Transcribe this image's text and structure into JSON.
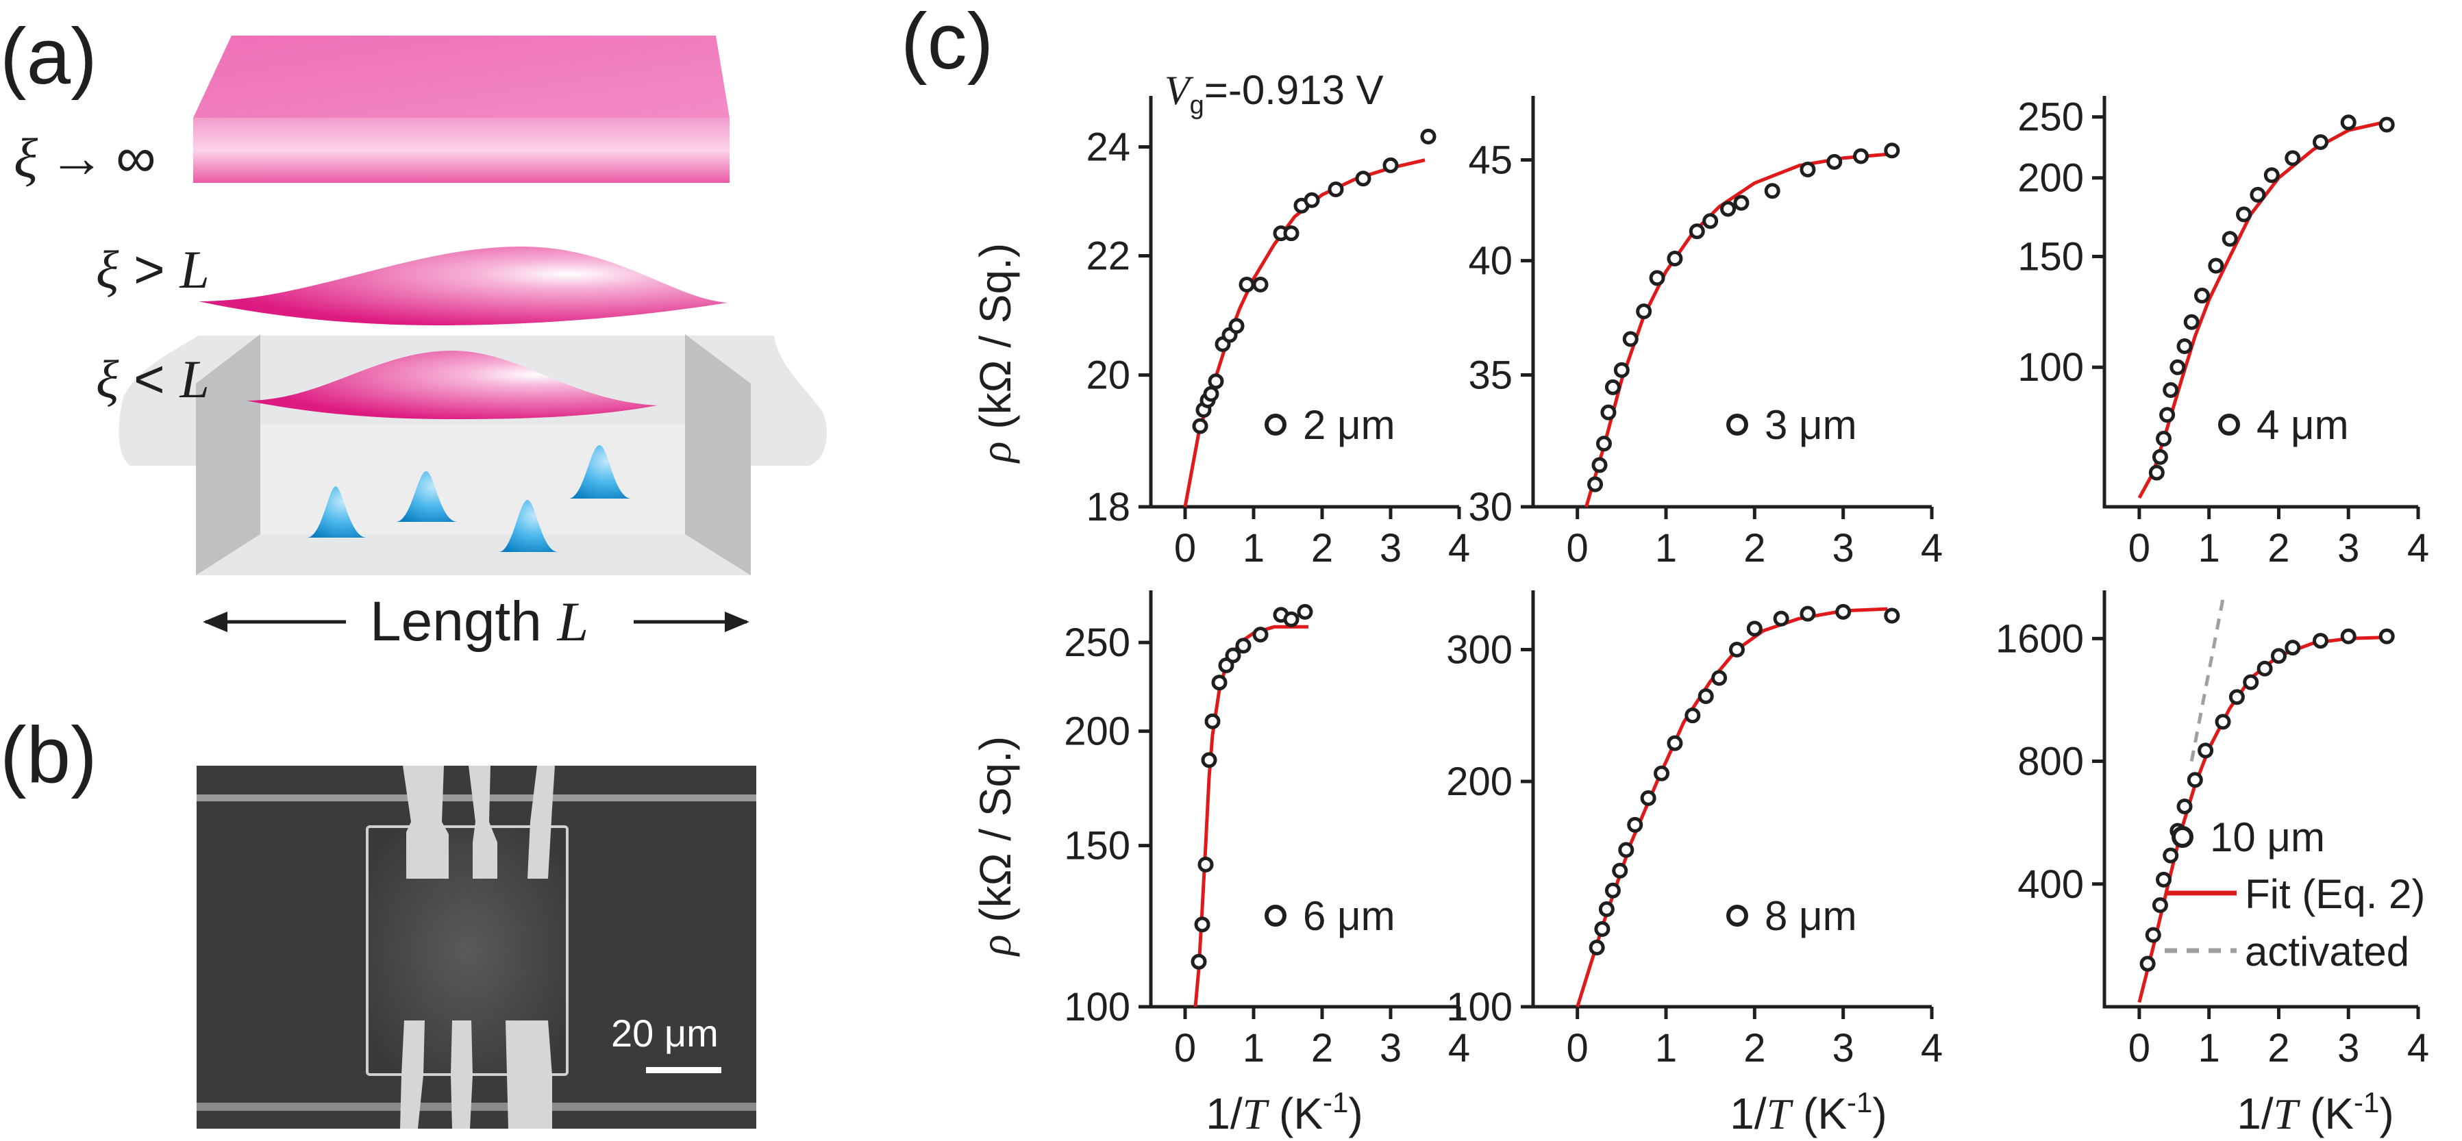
{
  "panel_a": {
    "label": "(a)",
    "xi_infinity": {
      "sym": "ξ",
      "arrow": "→",
      "inf": "∞"
    },
    "xi_gt": {
      "sym": "ξ",
      "rel": " > ",
      "L": "L"
    },
    "xi_lt": {
      "sym": "ξ",
      "rel": " < ",
      "L": "L"
    },
    "length_label": {
      "text": "Length ",
      "L": "L"
    }
  },
  "panel_b": {
    "label": "(b)",
    "scalebar": "20 μm"
  },
  "panel_c": {
    "label": "(c)",
    "gate_label": {
      "V": "V",
      "sub": "g",
      "value": "=-0.913 V"
    }
  },
  "ylabel": {
    "rho": "ρ",
    "text": " (kΩ / Sq.)"
  },
  "xlabel": {
    "prefix": "1/",
    "T": "T",
    "suffix": " (K",
    "exp": "-1",
    "close": ")"
  },
  "legend_extra": {
    "fit": "Fit (Eq. 2)",
    "activated": "activated"
  },
  "colors": {
    "fit": "#e0191b",
    "activated": "#a0a0a0",
    "marker": "#1f1f1f",
    "pink": "#e5308c",
    "blue": "#1e9fdc"
  },
  "chart_data": [
    {
      "type": "scatter",
      "legend": "2 μm",
      "xlim": [
        -0.5,
        4
      ],
      "ylim": [
        18,
        25
      ],
      "yscale": "log",
      "yticks": [
        18,
        20,
        22,
        24
      ],
      "xticks": [
        0,
        1,
        2,
        3,
        4
      ],
      "points": [
        [
          0.22,
          19.2
        ],
        [
          0.27,
          19.45
        ],
        [
          0.33,
          19.6
        ],
        [
          0.38,
          19.7
        ],
        [
          0.45,
          19.9
        ],
        [
          0.55,
          20.5
        ],
        [
          0.65,
          20.65
        ],
        [
          0.75,
          20.8
        ],
        [
          0.9,
          21.5
        ],
        [
          1.1,
          21.5
        ],
        [
          1.4,
          22.4
        ],
        [
          1.55,
          22.4
        ],
        [
          1.7,
          22.9
        ],
        [
          1.85,
          23.0
        ],
        [
          2.2,
          23.2
        ],
        [
          2.6,
          23.4
        ],
        [
          3.0,
          23.65
        ],
        [
          3.55,
          24.2
        ]
      ],
      "fit": [
        [
          0.0,
          18.0
        ],
        [
          0.2,
          19.1
        ],
        [
          0.4,
          19.8
        ],
        [
          0.6,
          20.5
        ],
        [
          0.8,
          21.1
        ],
        [
          1.0,
          21.6
        ],
        [
          1.3,
          22.2
        ],
        [
          1.6,
          22.7
        ],
        [
          2.0,
          23.1
        ],
        [
          2.5,
          23.4
        ],
        [
          3.0,
          23.6
        ],
        [
          3.5,
          23.75
        ]
      ]
    },
    {
      "type": "scatter",
      "legend": "3 μm",
      "xlim": [
        -0.5,
        4
      ],
      "ylim": [
        30,
        48.5
      ],
      "yscale": "log",
      "yticks": [
        30,
        35,
        40,
        45
      ],
      "xticks": [
        0,
        1,
        2,
        3,
        4
      ],
      "points": [
        [
          0.2,
          30.8
        ],
        [
          0.25,
          31.5
        ],
        [
          0.3,
          32.3
        ],
        [
          0.35,
          33.5
        ],
        [
          0.4,
          34.5
        ],
        [
          0.5,
          35.2
        ],
        [
          0.6,
          36.5
        ],
        [
          0.75,
          37.7
        ],
        [
          0.9,
          39.2
        ],
        [
          1.1,
          40.1
        ],
        [
          1.35,
          41.4
        ],
        [
          1.5,
          41.9
        ],
        [
          1.7,
          42.5
        ],
        [
          1.85,
          42.8
        ],
        [
          2.2,
          43.4
        ],
        [
          2.6,
          44.5
        ],
        [
          2.9,
          44.9
        ],
        [
          3.2,
          45.2
        ],
        [
          3.55,
          45.5
        ]
      ],
      "fit": [
        [
          0.1,
          30.0
        ],
        [
          0.3,
          32.2
        ],
        [
          0.5,
          34.8
        ],
        [
          0.75,
          37.5
        ],
        [
          1.0,
          39.5
        ],
        [
          1.3,
          41.3
        ],
        [
          1.6,
          42.6
        ],
        [
          2.0,
          43.8
        ],
        [
          2.5,
          44.7
        ],
        [
          3.0,
          45.1
        ],
        [
          3.5,
          45.3
        ]
      ]
    },
    {
      "type": "scatter",
      "legend": "4 μm",
      "xlim": [
        -0.5,
        4
      ],
      "ylim": [
        60,
        270
      ],
      "yscale": "log",
      "yticks": [
        100,
        150,
        200,
        250
      ],
      "xticks": [
        0,
        1,
        2,
        3,
        4
      ],
      "points": [
        [
          0.25,
          68
        ],
        [
          0.3,
          72
        ],
        [
          0.35,
          77
        ],
        [
          0.4,
          84
        ],
        [
          0.45,
          92
        ],
        [
          0.55,
          100
        ],
        [
          0.65,
          108
        ],
        [
          0.75,
          118
        ],
        [
          0.9,
          130
        ],
        [
          1.1,
          145
        ],
        [
          1.3,
          160
        ],
        [
          1.5,
          175
        ],
        [
          1.7,
          188
        ],
        [
          1.9,
          202
        ],
        [
          2.2,
          215
        ],
        [
          2.6,
          228
        ],
        [
          3.0,
          245
        ],
        [
          3.55,
          243
        ]
      ],
      "fit": [
        [
          0.0,
          62
        ],
        [
          0.2,
          68
        ],
        [
          0.4,
          80
        ],
        [
          0.6,
          95
        ],
        [
          0.8,
          112
        ],
        [
          1.0,
          128
        ],
        [
          1.3,
          150
        ],
        [
          1.6,
          175
        ],
        [
          2.0,
          200
        ],
        [
          2.5,
          222
        ],
        [
          3.0,
          238
        ],
        [
          3.5,
          245
        ]
      ]
    },
    {
      "type": "scatter",
      "legend": "6 μm",
      "xlim": [
        -0.5,
        4
      ],
      "ylim": [
        100,
        285
      ],
      "yscale": "log",
      "yticks": [
        100,
        150,
        200,
        250
      ],
      "xticks": [
        0,
        1,
        2,
        3,
        4
      ],
      "points": [
        [
          0.2,
          112
        ],
        [
          0.25,
          123
        ],
        [
          0.3,
          143
        ],
        [
          0.35,
          186
        ],
        [
          0.4,
          205
        ],
        [
          0.5,
          226
        ],
        [
          0.6,
          236
        ],
        [
          0.7,
          242
        ],
        [
          0.85,
          248
        ],
        [
          1.1,
          255
        ],
        [
          1.4,
          268
        ],
        [
          1.55,
          265
        ],
        [
          1.75,
          270
        ]
      ],
      "fit": [
        [
          0.15,
          100
        ],
        [
          0.2,
          110
        ],
        [
          0.25,
          128
        ],
        [
          0.3,
          150
        ],
        [
          0.35,
          178
        ],
        [
          0.4,
          198
        ],
        [
          0.5,
          222
        ],
        [
          0.6,
          236
        ],
        [
          0.8,
          250
        ],
        [
          1.0,
          256
        ],
        [
          1.3,
          260
        ],
        [
          1.8,
          260
        ]
      ]
    },
    {
      "type": "scatter",
      "legend": "8 μm",
      "xlim": [
        -0.5,
        4
      ],
      "ylim": [
        100,
        360
      ],
      "yscale": "log",
      "yticks": [
        100,
        200,
        300
      ],
      "xticks": [
        0,
        1,
        2,
        3,
        4
      ],
      "points": [
        [
          0.22,
          120
        ],
        [
          0.28,
          127
        ],
        [
          0.33,
          135
        ],
        [
          0.4,
          143
        ],
        [
          0.48,
          152
        ],
        [
          0.55,
          162
        ],
        [
          0.65,
          175
        ],
        [
          0.8,
          190
        ],
        [
          0.95,
          205
        ],
        [
          1.1,
          225
        ],
        [
          1.3,
          245
        ],
        [
          1.45,
          260
        ],
        [
          1.6,
          275
        ],
        [
          1.8,
          300
        ],
        [
          2.0,
          320
        ],
        [
          2.3,
          330
        ],
        [
          2.6,
          335
        ],
        [
          3.0,
          337
        ],
        [
          3.55,
          333
        ]
      ],
      "fit": [
        [
          0.0,
          100
        ],
        [
          0.3,
          130
        ],
        [
          0.6,
          165
        ],
        [
          0.9,
          200
        ],
        [
          1.2,
          240
        ],
        [
          1.5,
          272
        ],
        [
          1.8,
          300
        ],
        [
          2.1,
          318
        ],
        [
          2.5,
          330
        ],
        [
          3.0,
          338
        ],
        [
          3.5,
          340
        ]
      ]
    },
    {
      "type": "scatter",
      "legend": "10 μm",
      "xlim": [
        -0.5,
        4
      ],
      "ylim": [
        200,
        2100
      ],
      "yscale": "log",
      "yticks": [
        400,
        800,
        1600
      ],
      "xticks": [
        0,
        1,
        2,
        3,
        4
      ],
      "points": [
        [
          0.12,
          255
        ],
        [
          0.2,
          300
        ],
        [
          0.3,
          355
        ],
        [
          0.35,
          410
        ],
        [
          0.45,
          470
        ],
        [
          0.55,
          540
        ],
        [
          0.65,
          620
        ],
        [
          0.8,
          720
        ],
        [
          0.95,
          850
        ],
        [
          1.2,
          1000
        ],
        [
          1.4,
          1150
        ],
        [
          1.6,
          1250
        ],
        [
          1.8,
          1350
        ],
        [
          2.0,
          1450
        ],
        [
          2.2,
          1520
        ],
        [
          2.6,
          1580
        ],
        [
          3.0,
          1620
        ],
        [
          3.55,
          1620
        ]
      ],
      "fit": [
        [
          0.0,
          205
        ],
        [
          0.2,
          280
        ],
        [
          0.4,
          390
        ],
        [
          0.6,
          540
        ],
        [
          0.8,
          700
        ],
        [
          1.0,
          860
        ],
        [
          1.3,
          1080
        ],
        [
          1.6,
          1280
        ],
        [
          2.0,
          1450
        ],
        [
          2.5,
          1560
        ],
        [
          3.0,
          1600
        ],
        [
          3.5,
          1610
        ]
      ],
      "activated": [
        [
          0.75,
          800
        ],
        [
          1.2,
          2000
        ]
      ]
    }
  ]
}
